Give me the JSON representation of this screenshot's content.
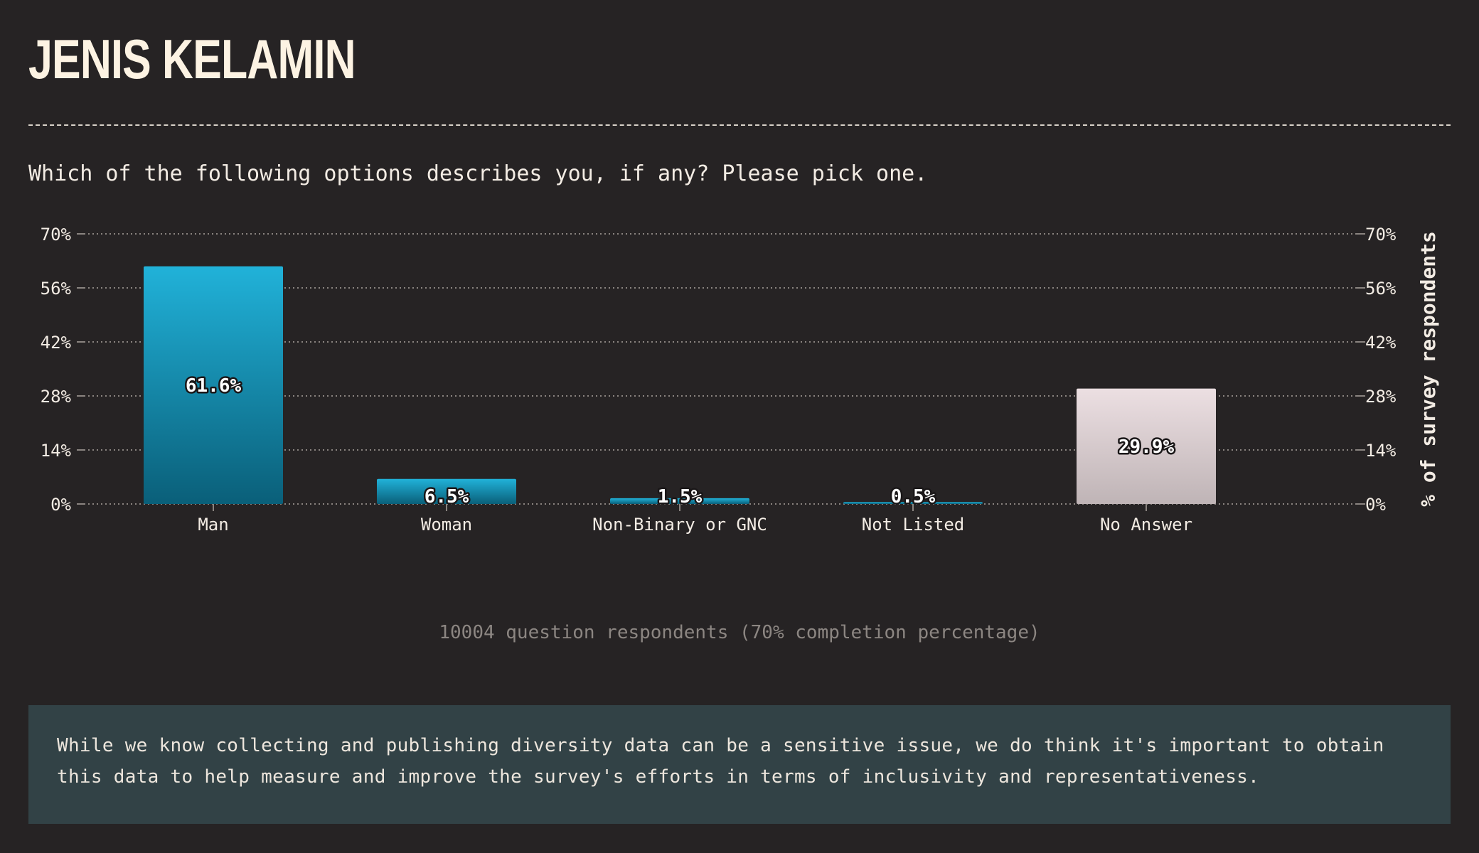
{
  "page": {
    "title": "JENIS KELAMIN",
    "question": "Which of the following options describes you, if any? Please pick one.",
    "respondents_note": "10004 question respondents (70% completion percentage)",
    "info_text": "While we know collecting and publishing diversity data can be a sensitive issue, we do think it's important to obtain this data to help measure and improve the survey's efforts in terms of inclusivity and representativeness."
  },
  "chart_data": {
    "type": "bar",
    "categories": [
      "Man",
      "Woman",
      "Non-Binary or GNC",
      "Not Listed",
      "No Answer"
    ],
    "values": [
      61.6,
      6.5,
      1.5,
      0.5,
      29.9
    ],
    "value_labels": [
      "61.6%",
      "6.5%",
      "1.5%",
      "0.5%",
      "29.9%"
    ],
    "ylim": [
      0,
      70
    ],
    "yticks": [
      0,
      14,
      28,
      42,
      56,
      70
    ],
    "ytick_labels": [
      "0%",
      "14%",
      "28%",
      "42%",
      "56%",
      "70%"
    ],
    "ylabel": "% of survey respondents",
    "xlabel": "",
    "grid": true,
    "colors": {
      "main_top": "#21b2d9",
      "main_bottom": "#0a5f79",
      "alt_top": "#ecdfe2",
      "alt_bottom": "#bfb4b6",
      "grid": "#8a8480",
      "text": "#f3ece4"
    },
    "bar_styles": [
      "main",
      "main",
      "main",
      "main",
      "alt"
    ]
  }
}
